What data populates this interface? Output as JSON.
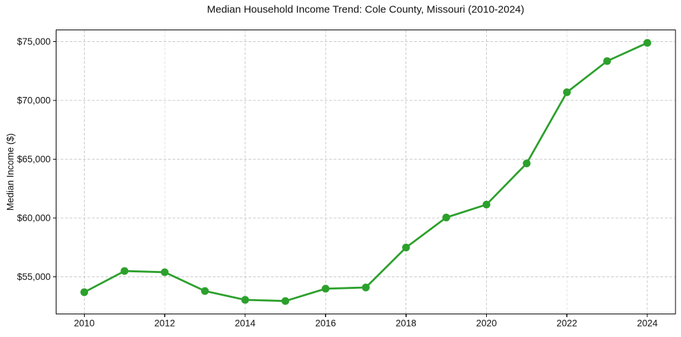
{
  "figure": {
    "background": "#ffffff"
  },
  "chart_data": {
    "type": "line",
    "title": "Median Household Income Trend: Cole County, Missouri (2010-2024)",
    "ylabel": "Median Income ($)",
    "xlabel": "",
    "x": [
      2010,
      2011,
      2012,
      2013,
      2014,
      2015,
      2016,
      2017,
      2018,
      2019,
      2020,
      2021,
      2022,
      2023,
      2024
    ],
    "values": [
      53700,
      55500,
      55400,
      53800,
      53050,
      52950,
      54000,
      54100,
      57500,
      60050,
      61150,
      64650,
      70700,
      73350,
      74900
    ],
    "xticks": [
      2010,
      2012,
      2014,
      2016,
      2018,
      2020,
      2022,
      2024
    ],
    "xtick_labels": [
      "2010",
      "2012",
      "2014",
      "2016",
      "2018",
      "2020",
      "2022",
      "2024"
    ],
    "yticks": [
      55000,
      60000,
      65000,
      70000,
      75000
    ],
    "ytick_labels": [
      "$55,000",
      "$60,000",
      "$65,000",
      "$70,000",
      "$75,000"
    ],
    "xlim": [
      2009.3,
      2024.7
    ],
    "ylim": [
      51850,
      76000
    ],
    "grid": true,
    "grid_style": "dashed",
    "legend_position": "none",
    "line_color": "#2ca02c",
    "marker": "circle",
    "grid_color": "#cacaca",
    "spine_color": "#000000",
    "text_color": "#111111"
  }
}
